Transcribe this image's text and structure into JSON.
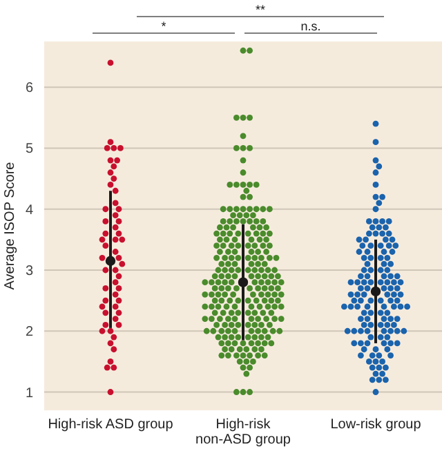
{
  "chart_data": {
    "type": "scatter",
    "ylabel": "Average ISOP Score",
    "categories": [
      "High-risk ASD group",
      "High-risk non-ASD group",
      "Low-risk group"
    ],
    "ylim": [
      0.7,
      6.75
    ],
    "yticks": [
      1,
      2,
      3,
      4,
      5,
      6
    ],
    "grid": "y",
    "marker": "circle",
    "annotations": [
      "*",
      "**",
      "n.s."
    ],
    "series": [
      {
        "type": "scatter",
        "color": "#c8102e",
        "x": [
          "High-risk ASD group",
          "High-risk ASD group",
          "High-risk ASD group",
          "High-risk ASD group",
          "High-risk ASD group",
          "High-risk ASD group",
          "High-risk ASD group",
          "High-risk ASD group",
          "High-risk ASD group",
          "High-risk ASD group",
          "High-risk ASD group",
          "High-risk ASD group",
          "High-risk ASD group",
          "High-risk ASD group",
          "High-risk ASD group",
          "High-risk ASD group",
          "High-risk ASD group",
          "High-risk ASD group",
          "High-risk ASD group",
          "High-risk ASD group",
          "High-risk ASD group",
          "High-risk ASD group",
          "High-risk ASD group",
          "High-risk ASD group",
          "High-risk ASD group",
          "High-risk ASD group",
          "High-risk ASD group",
          "High-risk ASD group",
          "High-risk ASD group",
          "High-risk ASD group",
          "High-risk ASD group",
          "High-risk ASD group",
          "High-risk ASD group",
          "High-risk ASD group",
          "High-risk ASD group",
          "High-risk ASD group",
          "High-risk ASD group",
          "High-risk ASD group",
          "High-risk ASD group",
          "High-risk ASD group",
          "High-risk ASD group",
          "High-risk ASD group",
          "High-risk ASD group",
          "High-risk ASD group",
          "High-risk ASD group",
          "High-risk ASD group",
          "High-risk ASD group",
          "High-risk ASD group",
          "High-risk ASD group",
          "High-risk ASD group",
          "High-risk ASD group",
          "High-risk ASD group",
          "High-risk ASD group",
          "High-risk ASD group"
        ],
        "values": [
          6.4,
          5.1,
          5.0,
          5.0,
          5.0,
          4.8,
          4.8,
          4.7,
          4.6,
          4.5,
          4.4,
          4.3,
          4.1,
          4.0,
          4.0,
          3.9,
          3.8,
          3.8,
          3.7,
          3.6,
          3.6,
          3.5,
          3.5,
          3.5,
          3.4,
          3.3,
          3.2,
          3.2,
          3.1,
          3.0,
          3.0,
          2.9,
          2.8,
          2.7,
          2.7,
          2.6,
          2.5,
          2.5,
          2.4,
          2.4,
          2.3,
          2.3,
          2.2,
          2.1,
          2.1,
          2.0,
          2.0,
          1.9,
          1.8,
          1.7,
          1.5,
          1.4,
          1.4,
          1.0
        ]
      },
      {
        "type": "scatter",
        "color": "#4a8b2c",
        "x": [
          "High-risk non-ASD group",
          "High-risk non-ASD group",
          "High-risk non-ASD group",
          "High-risk non-ASD group",
          "High-risk non-ASD group",
          "High-risk non-ASD group",
          "High-risk non-ASD group",
          "High-risk non-ASD group",
          "High-risk non-ASD group",
          "High-risk non-ASD group",
          "High-risk non-ASD group",
          "High-risk non-ASD group",
          "High-risk non-ASD group",
          "High-risk non-ASD group",
          "High-risk non-ASD group",
          "High-risk non-ASD group",
          "High-risk non-ASD group",
          "High-risk non-ASD group",
          "High-risk non-ASD group",
          "High-risk non-ASD group",
          "High-risk non-ASD group",
          "High-risk non-ASD group",
          "High-risk non-ASD group",
          "High-risk non-ASD group",
          "High-risk non-ASD group",
          "High-risk non-ASD group",
          "High-risk non-ASD group",
          "High-risk non-ASD group",
          "High-risk non-ASD group",
          "High-risk non-ASD group",
          "High-risk non-ASD group",
          "High-risk non-ASD group",
          "High-risk non-ASD group",
          "High-risk non-ASD group",
          "High-risk non-ASD group",
          "High-risk non-ASD group",
          "High-risk non-ASD group",
          "High-risk non-ASD group",
          "High-risk non-ASD group",
          "High-risk non-ASD group",
          "High-risk non-ASD group",
          "High-risk non-ASD group",
          "High-risk non-ASD group",
          "High-risk non-ASD group",
          "High-risk non-ASD group",
          "High-risk non-ASD group",
          "High-risk non-ASD group",
          "High-risk non-ASD group",
          "High-risk non-ASD group",
          "High-risk non-ASD group",
          "High-risk non-ASD group",
          "High-risk non-ASD group",
          "High-risk non-ASD group",
          "High-risk non-ASD group",
          "High-risk non-ASD group",
          "High-risk non-ASD group",
          "High-risk non-ASD group",
          "High-risk non-ASD group",
          "High-risk non-ASD group",
          "High-risk non-ASD group",
          "High-risk non-ASD group",
          "High-risk non-ASD group",
          "High-risk non-ASD group",
          "High-risk non-ASD group",
          "High-risk non-ASD group",
          "High-risk non-ASD group",
          "High-risk non-ASD group",
          "High-risk non-ASD group",
          "High-risk non-ASD group",
          "High-risk non-ASD group",
          "High-risk non-ASD group",
          "High-risk non-ASD group",
          "High-risk non-ASD group",
          "High-risk non-ASD group",
          "High-risk non-ASD group",
          "High-risk non-ASD group",
          "High-risk non-ASD group",
          "High-risk non-ASD group",
          "High-risk non-ASD group",
          "High-risk non-ASD group",
          "High-risk non-ASD group",
          "High-risk non-ASD group",
          "High-risk non-ASD group",
          "High-risk non-ASD group",
          "High-risk non-ASD group",
          "High-risk non-ASD group",
          "High-risk non-ASD group",
          "High-risk non-ASD group",
          "High-risk non-ASD group",
          "High-risk non-ASD group",
          "High-risk non-ASD group",
          "High-risk non-ASD group",
          "High-risk non-ASD group",
          "High-risk non-ASD group",
          "High-risk non-ASD group",
          "High-risk non-ASD group",
          "High-risk non-ASD group",
          "High-risk non-ASD group",
          "High-risk non-ASD group",
          "High-risk non-ASD group",
          "High-risk non-ASD group",
          "High-risk non-ASD group",
          "High-risk non-ASD group",
          "High-risk non-ASD group",
          "High-risk non-ASD group",
          "High-risk non-ASD group",
          "High-risk non-ASD group",
          "High-risk non-ASD group",
          "High-risk non-ASD group",
          "High-risk non-ASD group",
          "High-risk non-ASD group",
          "High-risk non-ASD group",
          "High-risk non-ASD group",
          "High-risk non-ASD group",
          "High-risk non-ASD group",
          "High-risk non-ASD group",
          "High-risk non-ASD group",
          "High-risk non-ASD group",
          "High-risk non-ASD group",
          "High-risk non-ASD group",
          "High-risk non-ASD group",
          "High-risk non-ASD group",
          "High-risk non-ASD group",
          "High-risk non-ASD group",
          "High-risk non-ASD group",
          "High-risk non-ASD group",
          "High-risk non-ASD group",
          "High-risk non-ASD group",
          "High-risk non-ASD group",
          "High-risk non-ASD group",
          "High-risk non-ASD group",
          "High-risk non-ASD group",
          "High-risk non-ASD group",
          "High-risk non-ASD group",
          "High-risk non-ASD group",
          "High-risk non-ASD group",
          "High-risk non-ASD group",
          "High-risk non-ASD group",
          "High-risk non-ASD group",
          "High-risk non-ASD group",
          "High-risk non-ASD group",
          "High-risk non-ASD group",
          "High-risk non-ASD group",
          "High-risk non-ASD group",
          "High-risk non-ASD group",
          "High-risk non-ASD group",
          "High-risk non-ASD group",
          "High-risk non-ASD group",
          "High-risk non-ASD group",
          "High-risk non-ASD group",
          "High-risk non-ASD group",
          "High-risk non-ASD group",
          "High-risk non-ASD group",
          "High-risk non-ASD group",
          "High-risk non-ASD group",
          "High-risk non-ASD group",
          "High-risk non-ASD group",
          "High-risk non-ASD group",
          "High-risk non-ASD group",
          "High-risk non-ASD group",
          "High-risk non-ASD group",
          "High-risk non-ASD group",
          "High-risk non-ASD group",
          "High-risk non-ASD group",
          "High-risk non-ASD group",
          "High-risk non-ASD group",
          "High-risk non-ASD group",
          "High-risk non-ASD group",
          "High-risk non-ASD group",
          "High-risk non-ASD group",
          "High-risk non-ASD group",
          "High-risk non-ASD group",
          "High-risk non-ASD group",
          "High-risk non-ASD group",
          "High-risk non-ASD group",
          "High-risk non-ASD group",
          "High-risk non-ASD group",
          "High-risk non-ASD group",
          "High-risk non-ASD group",
          "High-risk non-ASD group",
          "High-risk non-ASD group",
          "High-risk non-ASD group",
          "High-risk non-ASD group",
          "High-risk non-ASD group",
          "High-risk non-ASD group",
          "High-risk non-ASD group",
          "High-risk non-ASD group",
          "High-risk non-ASD group",
          "High-risk non-ASD group",
          "High-risk non-ASD group",
          "High-risk non-ASD group",
          "High-risk non-ASD group",
          "High-risk non-ASD group",
          "High-risk non-ASD group",
          "High-risk non-ASD group",
          "High-risk non-ASD group",
          "High-risk non-ASD group",
          "High-risk non-ASD group",
          "High-risk non-ASD group",
          "High-risk non-ASD group",
          "High-risk non-ASD group",
          "High-risk non-ASD group",
          "High-risk non-ASD group",
          "High-risk non-ASD group",
          "High-risk non-ASD group",
          "High-risk non-ASD group",
          "High-risk non-ASD group",
          "High-risk non-ASD group",
          "High-risk non-ASD group",
          "High-risk non-ASD group",
          "High-risk non-ASD group",
          "High-risk non-ASD group",
          "High-risk non-ASD group",
          "High-risk non-ASD group",
          "High-risk non-ASD group",
          "High-risk non-ASD group",
          "High-risk non-ASD group",
          "High-risk non-ASD group",
          "High-risk non-ASD group",
          "High-risk non-ASD group",
          "High-risk non-ASD group",
          "High-risk non-ASD group",
          "High-risk non-ASD group",
          "High-risk non-ASD group",
          "High-risk non-ASD group",
          "High-risk non-ASD group",
          "High-risk non-ASD group"
        ],
        "values": [
          6.6,
          6.6,
          5.5,
          5.5,
          5.5,
          5.2,
          5.0,
          5.0,
          5.0,
          4.8,
          4.6,
          4.4,
          4.4,
          4.4,
          4.4,
          4.4,
          4.3,
          4.2,
          4.2,
          4.0,
          4.0,
          4.0,
          4.0,
          4.0,
          4.0,
          4.0,
          4.0,
          3.9,
          3.9,
          3.9,
          3.9,
          3.8,
          3.8,
          3.8,
          3.8,
          3.8,
          3.8,
          3.8,
          3.7,
          3.7,
          3.7,
          3.7,
          3.7,
          3.7,
          3.6,
          3.6,
          3.6,
          3.6,
          3.6,
          3.6,
          3.6,
          3.6,
          3.5,
          3.5,
          3.5,
          3.5,
          3.5,
          3.5,
          3.4,
          3.4,
          3.4,
          3.4,
          3.4,
          3.4,
          3.4,
          3.4,
          3.3,
          3.3,
          3.3,
          3.3,
          3.3,
          3.3,
          3.2,
          3.2,
          3.2,
          3.2,
          3.2,
          3.2,
          3.2,
          3.2,
          3.2,
          3.1,
          3.1,
          3.1,
          3.1,
          3.1,
          3.1,
          3.0,
          3.0,
          3.0,
          3.0,
          3.0,
          3.0,
          3.0,
          3.0,
          3.0,
          2.9,
          2.9,
          2.9,
          2.9,
          2.9,
          2.9,
          2.9,
          2.9,
          2.9,
          2.8,
          2.8,
          2.8,
          2.8,
          2.8,
          2.8,
          2.8,
          2.8,
          2.8,
          2.8,
          2.7,
          2.7,
          2.7,
          2.7,
          2.7,
          2.7,
          2.7,
          2.7,
          2.7,
          2.6,
          2.6,
          2.6,
          2.6,
          2.6,
          2.6,
          2.6,
          2.6,
          2.6,
          2.6,
          2.5,
          2.5,
          2.5,
          2.5,
          2.5,
          2.5,
          2.5,
          2.5,
          2.5,
          2.4,
          2.4,
          2.4,
          2.4,
          2.4,
          2.4,
          2.4,
          2.4,
          2.4,
          2.4,
          2.3,
          2.3,
          2.3,
          2.3,
          2.3,
          2.3,
          2.3,
          2.3,
          2.2,
          2.2,
          2.2,
          2.2,
          2.2,
          2.2,
          2.2,
          2.2,
          2.2,
          2.2,
          2.1,
          2.1,
          2.1,
          2.1,
          2.1,
          2.1,
          2.1,
          2.1,
          2.0,
          2.0,
          2.0,
          2.0,
          2.0,
          2.0,
          2.0,
          2.0,
          2.0,
          2.0,
          1.9,
          1.9,
          1.9,
          1.9,
          1.9,
          1.9,
          1.9,
          1.9,
          1.8,
          1.8,
          1.8,
          1.8,
          1.8,
          1.8,
          1.8,
          1.8,
          1.7,
          1.7,
          1.7,
          1.7,
          1.7,
          1.7,
          1.6,
          1.6,
          1.6,
          1.6,
          1.6,
          1.6,
          1.6,
          1.5,
          1.5,
          1.5,
          1.4,
          1.4,
          1.3,
          1.0,
          1.0,
          1.0
        ]
      },
      {
        "type": "scatter",
        "color": "#1a63ad",
        "x": [
          "Low-risk group",
          "Low-risk group",
          "Low-risk group",
          "Low-risk group",
          "Low-risk group",
          "Low-risk group",
          "Low-risk group",
          "Low-risk group",
          "Low-risk group",
          "Low-risk group",
          "Low-risk group",
          "Low-risk group",
          "Low-risk group",
          "Low-risk group",
          "Low-risk group",
          "Low-risk group",
          "Low-risk group",
          "Low-risk group",
          "Low-risk group",
          "Low-risk group",
          "Low-risk group",
          "Low-risk group",
          "Low-risk group",
          "Low-risk group",
          "Low-risk group",
          "Low-risk group",
          "Low-risk group",
          "Low-risk group",
          "Low-risk group",
          "Low-risk group",
          "Low-risk group",
          "Low-risk group",
          "Low-risk group",
          "Low-risk group",
          "Low-risk group",
          "Low-risk group",
          "Low-risk group",
          "Low-risk group",
          "Low-risk group",
          "Low-risk group",
          "Low-risk group",
          "Low-risk group",
          "Low-risk group",
          "Low-risk group",
          "Low-risk group",
          "Low-risk group",
          "Low-risk group",
          "Low-risk group",
          "Low-risk group",
          "Low-risk group",
          "Low-risk group",
          "Low-risk group",
          "Low-risk group",
          "Low-risk group",
          "Low-risk group",
          "Low-risk group",
          "Low-risk group",
          "Low-risk group",
          "Low-risk group",
          "Low-risk group",
          "Low-risk group",
          "Low-risk group",
          "Low-risk group",
          "Low-risk group",
          "Low-risk group",
          "Low-risk group",
          "Low-risk group",
          "Low-risk group",
          "Low-risk group",
          "Low-risk group",
          "Low-risk group",
          "Low-risk group",
          "Low-risk group",
          "Low-risk group",
          "Low-risk group",
          "Low-risk group",
          "Low-risk group",
          "Low-risk group",
          "Low-risk group",
          "Low-risk group",
          "Low-risk group",
          "Low-risk group",
          "Low-risk group",
          "Low-risk group",
          "Low-risk group",
          "Low-risk group",
          "Low-risk group",
          "Low-risk group",
          "Low-risk group",
          "Low-risk group",
          "Low-risk group",
          "Low-risk group",
          "Low-risk group",
          "Low-risk group",
          "Low-risk group",
          "Low-risk group",
          "Low-risk group",
          "Low-risk group",
          "Low-risk group",
          "Low-risk group",
          "Low-risk group",
          "Low-risk group",
          "Low-risk group",
          "Low-risk group",
          "Low-risk group",
          "Low-risk group",
          "Low-risk group",
          "Low-risk group",
          "Low-risk group",
          "Low-risk group",
          "Low-risk group",
          "Low-risk group",
          "Low-risk group",
          "Low-risk group",
          "Low-risk group",
          "Low-risk group",
          "Low-risk group",
          "Low-risk group",
          "Low-risk group",
          "Low-risk group",
          "Low-risk group",
          "Low-risk group",
          "Low-risk group",
          "Low-risk group",
          "Low-risk group",
          "Low-risk group",
          "Low-risk group",
          "Low-risk group",
          "Low-risk group",
          "Low-risk group",
          "Low-risk group",
          "Low-risk group",
          "Low-risk group"
        ],
        "values": [
          5.4,
          5.1,
          4.8,
          4.7,
          4.6,
          4.4,
          4.2,
          4.2,
          4.1,
          4.0,
          3.8,
          3.8,
          3.8,
          3.8,
          3.7,
          3.7,
          3.7,
          3.6,
          3.6,
          3.6,
          3.6,
          3.5,
          3.5,
          3.5,
          3.5,
          3.4,
          3.4,
          3.4,
          3.4,
          3.4,
          3.3,
          3.3,
          3.3,
          3.3,
          3.2,
          3.2,
          3.2,
          3.2,
          3.1,
          3.1,
          3.1,
          3.0,
          3.0,
          3.0,
          3.0,
          2.9,
          2.9,
          2.9,
          2.9,
          2.9,
          2.8,
          2.8,
          2.8,
          2.8,
          2.8,
          2.8,
          2.8,
          2.8,
          2.7,
          2.7,
          2.7,
          2.7,
          2.7,
          2.6,
          2.6,
          2.6,
          2.6,
          2.6,
          2.6,
          2.5,
          2.5,
          2.5,
          2.5,
          2.5,
          2.5,
          2.4,
          2.4,
          2.4,
          2.4,
          2.4,
          2.4,
          2.4,
          2.4,
          2.3,
          2.3,
          2.3,
          2.3,
          2.2,
          2.2,
          2.2,
          2.2,
          2.2,
          2.1,
          2.1,
          2.1,
          2.1,
          2.1,
          2.0,
          2.0,
          2.0,
          2.0,
          2.0,
          2.0,
          2.0,
          2.0,
          1.9,
          1.9,
          1.9,
          1.8,
          1.8,
          1.8,
          1.8,
          1.8,
          1.8,
          1.7,
          1.7,
          1.7,
          1.6,
          1.6,
          1.6,
          1.6,
          1.5,
          1.5,
          1.5,
          1.4,
          1.4,
          1.4,
          1.3,
          1.3,
          1.2,
          1.2,
          1.2,
          1.0
        ]
      },
      {
        "type": "scatter",
        "color": "#1a1a1a",
        "x": [
          "High-risk ASD group",
          "High-risk non-ASD group",
          "Low-risk group"
        ],
        "values": [
          3.15,
          2.8,
          2.65
        ],
        "errors": [
          [
            2.05,
            4.3
          ],
          [
            1.85,
            3.75
          ],
          [
            1.8,
            3.5
          ]
        ]
      }
    ]
  }
}
